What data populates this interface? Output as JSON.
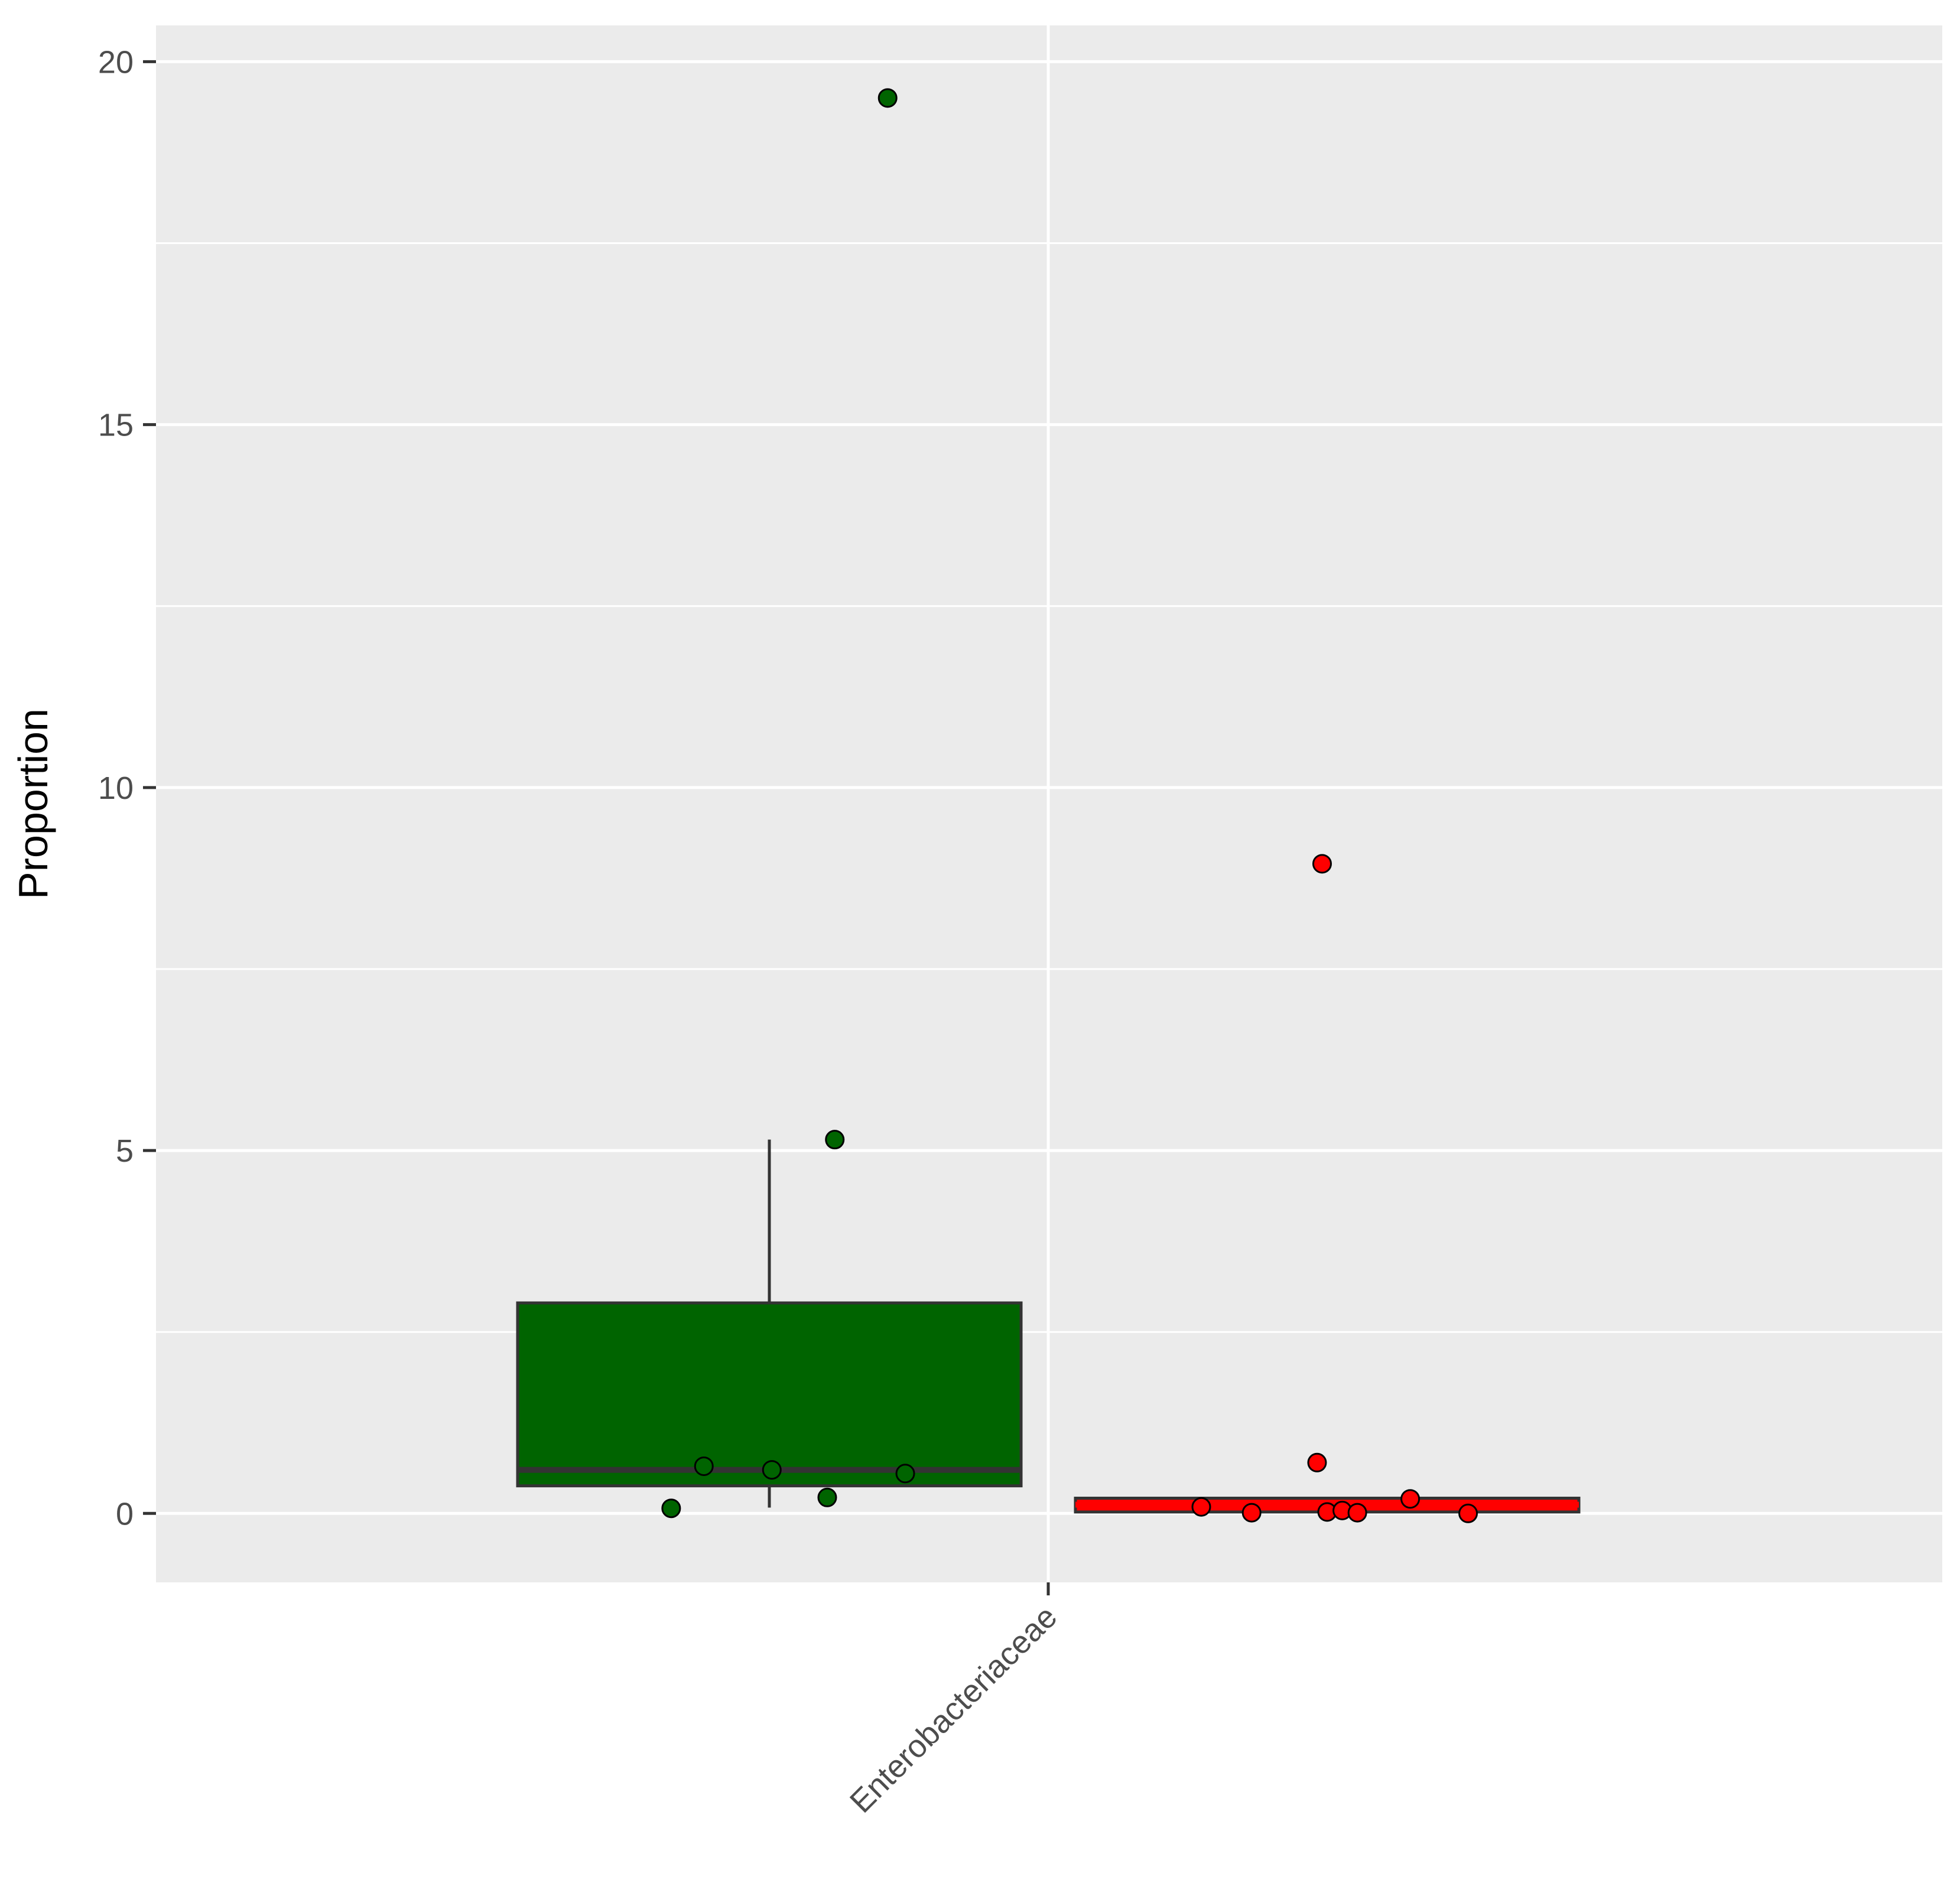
{
  "chart_data": {
    "type": "box",
    "title": "",
    "xlabel": "",
    "ylabel": "Proportion",
    "ylim": [
      -0.95,
      20.5
    ],
    "y_ticks": [
      0,
      5,
      10,
      15,
      20
    ],
    "y_tick_labels": [
      "0",
      "5",
      "10",
      "15",
      "20"
    ],
    "y_minor_gridlines": [
      2.5,
      7.5,
      12.5,
      17.5
    ],
    "categories": [
      "Enterobacteriaceae"
    ],
    "grid": true,
    "legend": "none",
    "groups": [
      {
        "fill_color": "#006400",
        "median_line_color": "#333333",
        "box": {
          "q1": 0.38,
          "median": 0.6,
          "q3": 2.9,
          "whisker_low": 0.08,
          "whisker_high": 5.15
        },
        "points": [
          {
            "x_offset": -0.195,
            "y": 0.07
          },
          {
            "x_offset": -0.13,
            "y": 0.65
          },
          {
            "x_offset": 0.005,
            "y": 0.6
          },
          {
            "x_offset": 0.115,
            "y": 0.22
          },
          {
            "x_offset": 0.13,
            "y": 5.15
          },
          {
            "x_offset": 0.235,
            "y": 19.5
          },
          {
            "x_offset": 0.27,
            "y": 0.55
          }
        ]
      },
      {
        "fill_color": "#ff0000",
        "median_line_color": "#ff0000",
        "box": {
          "q1": 0.02,
          "median": 0.12,
          "q3": 0.21,
          "whisker_low": 0.0,
          "whisker_high": 0.21
        },
        "points": [
          {
            "x_offset": -0.25,
            "y": 0.09
          },
          {
            "x_offset": -0.15,
            "y": 0.01
          },
          {
            "x_offset": -0.02,
            "y": 0.7
          },
          {
            "x_offset": -0.01,
            "y": 8.95
          },
          {
            "x_offset": 0.0,
            "y": 0.02
          },
          {
            "x_offset": 0.03,
            "y": 0.04
          },
          {
            "x_offset": 0.06,
            "y": 0.01
          },
          {
            "x_offset": 0.165,
            "y": 0.2
          },
          {
            "x_offset": 0.28,
            "y": 0.0
          }
        ]
      }
    ]
  }
}
